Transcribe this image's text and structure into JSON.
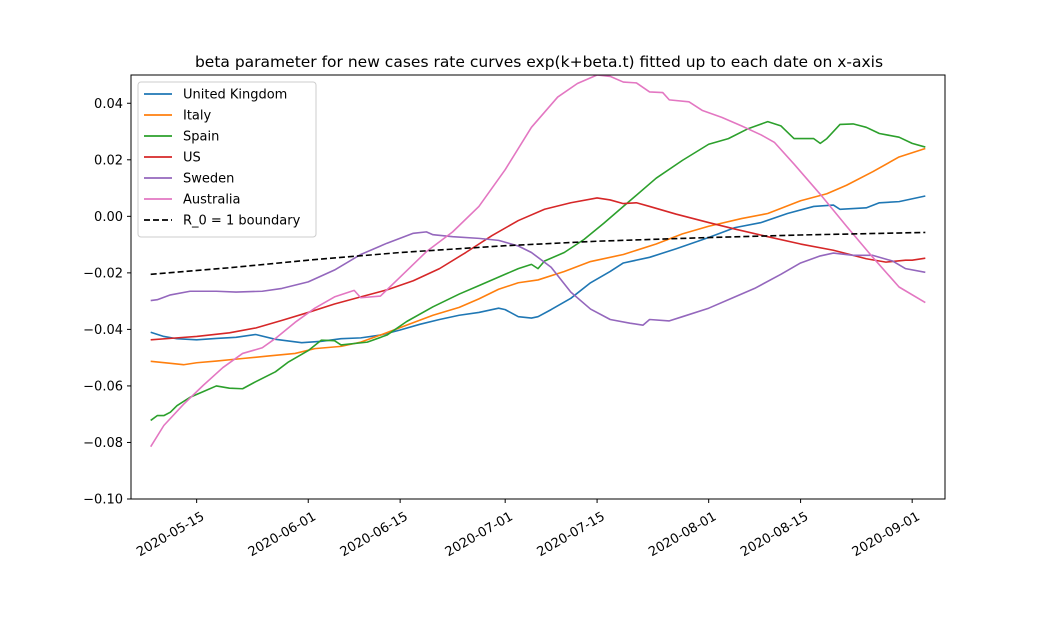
{
  "chart_data": {
    "type": "line",
    "title": "beta parameter for new cases rate curves exp(k+beta.t) fitted up to each date on x-axis",
    "xlabel": "",
    "ylabel": "",
    "x_start": "2020-05-08",
    "x_end": "2020-09-03",
    "xlim": [
      "2020-05-05",
      "2020-09-06"
    ],
    "ylim": [
      -0.1,
      0.05
    ],
    "x_ticks": [
      "2020-05-15",
      "2020-06-01",
      "2020-06-15",
      "2020-07-01",
      "2020-07-15",
      "2020-08-01",
      "2020-08-15",
      "2020-09-01"
    ],
    "y_ticks": [
      -0.1,
      -0.08,
      -0.06,
      -0.04,
      -0.02,
      0.0,
      0.02,
      0.04
    ],
    "y_tick_labels": [
      "−0.10",
      "−0.08",
      "−0.06",
      "−0.04",
      "−0.02",
      "0.00",
      "0.02",
      "0.04"
    ],
    "legend_position": "upper-left",
    "grid": false,
    "series": [
      {
        "name": "United Kingdom",
        "color": "#1f77b4",
        "dash": false,
        "points": [
          [
            "2020-05-08",
            -0.041
          ],
          [
            "2020-05-10",
            -0.0425
          ],
          [
            "2020-05-12",
            -0.0433
          ],
          [
            "2020-05-15",
            -0.0437
          ],
          [
            "2020-05-18",
            -0.0432
          ],
          [
            "2020-05-21",
            -0.0428
          ],
          [
            "2020-05-24",
            -0.0418
          ],
          [
            "2020-05-27",
            -0.0435
          ],
          [
            "2020-05-31",
            -0.0447
          ],
          [
            "2020-06-03",
            -0.0442
          ],
          [
            "2020-06-06",
            -0.0433
          ],
          [
            "2020-06-09",
            -0.043
          ],
          [
            "2020-06-12",
            -0.042
          ],
          [
            "2020-06-15",
            -0.0402
          ],
          [
            "2020-06-18",
            -0.0382
          ],
          [
            "2020-06-21",
            -0.0365
          ],
          [
            "2020-06-24",
            -0.035
          ],
          [
            "2020-06-27",
            -0.034
          ],
          [
            "2020-06-30",
            -0.0325
          ],
          [
            "2020-07-01",
            -0.033
          ],
          [
            "2020-07-03",
            -0.0355
          ],
          [
            "2020-07-05",
            -0.036
          ],
          [
            "2020-07-06",
            -0.0355
          ],
          [
            "2020-07-08",
            -0.033
          ],
          [
            "2020-07-11",
            -0.029
          ],
          [
            "2020-07-14",
            -0.0235
          ],
          [
            "2020-07-17",
            -0.0195
          ],
          [
            "2020-07-19",
            -0.0165
          ],
          [
            "2020-07-23",
            -0.0145
          ],
          [
            "2020-07-27",
            -0.0115
          ],
          [
            "2020-08-01",
            -0.0075
          ],
          [
            "2020-08-05",
            -0.004
          ],
          [
            "2020-08-09",
            -0.0022
          ],
          [
            "2020-08-13",
            0.001
          ],
          [
            "2020-08-17",
            0.0035
          ],
          [
            "2020-08-20",
            0.004
          ],
          [
            "2020-08-21",
            0.0025
          ],
          [
            "2020-08-25",
            0.003
          ],
          [
            "2020-08-27",
            0.0048
          ],
          [
            "2020-08-30",
            0.0052
          ],
          [
            "2020-09-03",
            0.0072
          ]
        ]
      },
      {
        "name": "Italy",
        "color": "#ff7f0e",
        "dash": false,
        "points": [
          [
            "2020-05-08",
            -0.0513
          ],
          [
            "2020-05-11",
            -0.052
          ],
          [
            "2020-05-13",
            -0.0525
          ],
          [
            "2020-05-15",
            -0.0518
          ],
          [
            "2020-05-18",
            -0.0512
          ],
          [
            "2020-05-22",
            -0.0503
          ],
          [
            "2020-05-26",
            -0.0494
          ],
          [
            "2020-05-30",
            -0.0485
          ],
          [
            "2020-06-02",
            -0.0468
          ],
          [
            "2020-06-06",
            -0.046
          ],
          [
            "2020-06-09",
            -0.0445
          ],
          [
            "2020-06-12",
            -0.042
          ],
          [
            "2020-06-16",
            -0.0385
          ],
          [
            "2020-06-20",
            -0.035
          ],
          [
            "2020-06-24",
            -0.0322
          ],
          [
            "2020-06-27",
            -0.0292
          ],
          [
            "2020-06-30",
            -0.0258
          ],
          [
            "2020-07-03",
            -0.0235
          ],
          [
            "2020-07-06",
            -0.0225
          ],
          [
            "2020-07-10",
            -0.0195
          ],
          [
            "2020-07-14",
            -0.016
          ],
          [
            "2020-07-19",
            -0.0135
          ],
          [
            "2020-07-24",
            -0.0098
          ],
          [
            "2020-07-28",
            -0.0062
          ],
          [
            "2020-08-01",
            -0.0035
          ],
          [
            "2020-08-06",
            -0.0008
          ],
          [
            "2020-08-10",
            0.001
          ],
          [
            "2020-08-15",
            0.0055
          ],
          [
            "2020-08-19",
            0.008
          ],
          [
            "2020-08-22",
            0.011
          ],
          [
            "2020-08-26",
            0.0158
          ],
          [
            "2020-08-30",
            0.021
          ],
          [
            "2020-09-03",
            0.024
          ]
        ]
      },
      {
        "name": "Spain",
        "color": "#2ca02c",
        "dash": false,
        "points": [
          [
            "2020-05-08",
            -0.0722
          ],
          [
            "2020-05-09",
            -0.0705
          ],
          [
            "2020-05-10",
            -0.0705
          ],
          [
            "2020-05-11",
            -0.0693
          ],
          [
            "2020-05-12",
            -0.067
          ],
          [
            "2020-05-14",
            -0.064
          ],
          [
            "2020-05-16",
            -0.062
          ],
          [
            "2020-05-18",
            -0.06
          ],
          [
            "2020-05-20",
            -0.0608
          ],
          [
            "2020-05-22",
            -0.061
          ],
          [
            "2020-05-24",
            -0.0585
          ],
          [
            "2020-05-27",
            -0.055
          ],
          [
            "2020-05-29",
            -0.0515
          ],
          [
            "2020-06-01",
            -0.0475
          ],
          [
            "2020-06-03",
            -0.0438
          ],
          [
            "2020-06-05",
            -0.044
          ],
          [
            "2020-06-06",
            -0.0455
          ],
          [
            "2020-06-10",
            -0.0445
          ],
          [
            "2020-06-13",
            -0.042
          ],
          [
            "2020-06-16",
            -0.0372
          ],
          [
            "2020-06-20",
            -0.032
          ],
          [
            "2020-06-24",
            -0.0275
          ],
          [
            "2020-06-27",
            -0.0245
          ],
          [
            "2020-07-01",
            -0.0205
          ],
          [
            "2020-07-03",
            -0.0185
          ],
          [
            "2020-07-05",
            -0.017
          ],
          [
            "2020-07-06",
            -0.0185
          ],
          [
            "2020-07-07",
            -0.0158
          ],
          [
            "2020-07-10",
            -0.0128
          ],
          [
            "2020-07-13",
            -0.0082
          ],
          [
            "2020-07-16",
            -0.0025
          ],
          [
            "2020-07-20",
            0.0055
          ],
          [
            "2020-07-24",
            0.0135
          ],
          [
            "2020-07-28",
            0.0198
          ],
          [
            "2020-08-01",
            0.0255
          ],
          [
            "2020-08-04",
            0.0275
          ],
          [
            "2020-08-07",
            0.031
          ],
          [
            "2020-08-10",
            0.0335
          ],
          [
            "2020-08-12",
            0.032
          ],
          [
            "2020-08-14",
            0.0275
          ],
          [
            "2020-08-17",
            0.0275
          ],
          [
            "2020-08-18",
            0.0258
          ],
          [
            "2020-08-19",
            0.0275
          ],
          [
            "2020-08-21",
            0.0325
          ],
          [
            "2020-08-23",
            0.0327
          ],
          [
            "2020-08-25",
            0.0315
          ],
          [
            "2020-08-27",
            0.0293
          ],
          [
            "2020-08-30",
            0.028
          ],
          [
            "2020-09-01",
            0.0258
          ],
          [
            "2020-09-03",
            0.0245
          ]
        ]
      },
      {
        "name": "US",
        "color": "#d62728",
        "dash": false,
        "points": [
          [
            "2020-05-08",
            -0.0437
          ],
          [
            "2020-05-12",
            -0.043
          ],
          [
            "2020-05-15",
            -0.0425
          ],
          [
            "2020-05-20",
            -0.0412
          ],
          [
            "2020-05-24",
            -0.0395
          ],
          [
            "2020-05-28",
            -0.0368
          ],
          [
            "2020-06-01",
            -0.034
          ],
          [
            "2020-06-05",
            -0.031
          ],
          [
            "2020-06-09",
            -0.0285
          ],
          [
            "2020-06-13",
            -0.026
          ],
          [
            "2020-06-17",
            -0.0228
          ],
          [
            "2020-06-21",
            -0.0185
          ],
          [
            "2020-06-25",
            -0.0128
          ],
          [
            "2020-06-29",
            -0.0068
          ],
          [
            "2020-07-03",
            -0.0015
          ],
          [
            "2020-07-07",
            0.0025
          ],
          [
            "2020-07-11",
            0.0048
          ],
          [
            "2020-07-15",
            0.0065
          ],
          [
            "2020-07-17",
            0.0058
          ],
          [
            "2020-07-19",
            0.0045
          ],
          [
            "2020-07-21",
            0.0048
          ],
          [
            "2020-07-23",
            0.0035
          ],
          [
            "2020-07-27",
            0.0008
          ],
          [
            "2020-08-01",
            -0.0022
          ],
          [
            "2020-08-05",
            -0.0045
          ],
          [
            "2020-08-10",
            -0.0072
          ],
          [
            "2020-08-15",
            -0.0098
          ],
          [
            "2020-08-20",
            -0.012
          ],
          [
            "2020-08-25",
            -0.015
          ],
          [
            "2020-08-28",
            -0.0162
          ],
          [
            "2020-08-31",
            -0.0155
          ],
          [
            "2020-09-01",
            -0.0155
          ],
          [
            "2020-09-03",
            -0.0148
          ]
        ]
      },
      {
        "name": "Sweden",
        "color": "#9467bd",
        "dash": false,
        "points": [
          [
            "2020-05-08",
            -0.0298
          ],
          [
            "2020-05-09",
            -0.0295
          ],
          [
            "2020-05-11",
            -0.0278
          ],
          [
            "2020-05-14",
            -0.0265
          ],
          [
            "2020-05-18",
            -0.0265
          ],
          [
            "2020-05-21",
            -0.0268
          ],
          [
            "2020-05-25",
            -0.0265
          ],
          [
            "2020-05-28",
            -0.0255
          ],
          [
            "2020-06-01",
            -0.0232
          ],
          [
            "2020-06-05",
            -0.019
          ],
          [
            "2020-06-09",
            -0.0135
          ],
          [
            "2020-06-13",
            -0.0095
          ],
          [
            "2020-06-17",
            -0.006
          ],
          [
            "2020-06-19",
            -0.0055
          ],
          [
            "2020-06-20",
            -0.0065
          ],
          [
            "2020-06-23",
            -0.0072
          ],
          [
            "2020-06-27",
            -0.0078
          ],
          [
            "2020-06-30",
            -0.0085
          ],
          [
            "2020-07-03",
            -0.0105
          ],
          [
            "2020-07-05",
            -0.0128
          ],
          [
            "2020-07-08",
            -0.018
          ],
          [
            "2020-07-11",
            -0.0268
          ],
          [
            "2020-07-14",
            -0.0328
          ],
          [
            "2020-07-17",
            -0.0365
          ],
          [
            "2020-07-20",
            -0.0378
          ],
          [
            "2020-07-22",
            -0.0385
          ],
          [
            "2020-07-23",
            -0.0365
          ],
          [
            "2020-07-26",
            -0.037
          ],
          [
            "2020-07-28",
            -0.0355
          ],
          [
            "2020-08-01",
            -0.0325
          ],
          [
            "2020-08-05",
            -0.0285
          ],
          [
            "2020-08-08",
            -0.0255
          ],
          [
            "2020-08-12",
            -0.0205
          ],
          [
            "2020-08-15",
            -0.0165
          ],
          [
            "2020-08-18",
            -0.014
          ],
          [
            "2020-08-20",
            -0.013
          ],
          [
            "2020-08-23",
            -0.0138
          ],
          [
            "2020-08-26",
            -0.0138
          ],
          [
            "2020-08-29",
            -0.0158
          ],
          [
            "2020-08-31",
            -0.0185
          ],
          [
            "2020-09-03",
            -0.0198
          ]
        ]
      },
      {
        "name": "Australia",
        "color": "#e377c2",
        "dash": false,
        "points": [
          [
            "2020-05-08",
            -0.0815
          ],
          [
            "2020-05-10",
            -0.074
          ],
          [
            "2020-05-13",
            -0.0665
          ],
          [
            "2020-05-16",
            -0.0598
          ],
          [
            "2020-05-19",
            -0.0535
          ],
          [
            "2020-05-22",
            -0.0485
          ],
          [
            "2020-05-25",
            -0.0465
          ],
          [
            "2020-05-27",
            -0.0432
          ],
          [
            "2020-05-30",
            -0.0375
          ],
          [
            "2020-06-02",
            -0.0325
          ],
          [
            "2020-06-05",
            -0.0285
          ],
          [
            "2020-06-08",
            -0.0262
          ],
          [
            "2020-06-09",
            -0.0288
          ],
          [
            "2020-06-12",
            -0.0282
          ],
          [
            "2020-06-15",
            -0.0215
          ],
          [
            "2020-06-19",
            -0.0125
          ],
          [
            "2020-06-23",
            -0.0055
          ],
          [
            "2020-06-27",
            0.0035
          ],
          [
            "2020-07-01",
            0.0165
          ],
          [
            "2020-07-05",
            0.0315
          ],
          [
            "2020-07-09",
            0.0422
          ],
          [
            "2020-07-12",
            0.047
          ],
          [
            "2020-07-15",
            0.05
          ],
          [
            "2020-07-17",
            0.0495
          ],
          [
            "2020-07-19",
            0.0475
          ],
          [
            "2020-07-21",
            0.0472
          ],
          [
            "2020-07-23",
            0.044
          ],
          [
            "2020-07-25",
            0.0438
          ],
          [
            "2020-07-26",
            0.0412
          ],
          [
            "2020-07-29",
            0.0405
          ],
          [
            "2020-07-31",
            0.0375
          ],
          [
            "2020-08-03",
            0.035
          ],
          [
            "2020-08-06",
            0.032
          ],
          [
            "2020-08-09",
            0.0288
          ],
          [
            "2020-08-11",
            0.0262
          ],
          [
            "2020-08-14",
            0.0185
          ],
          [
            "2020-08-18",
            0.0078
          ],
          [
            "2020-08-22",
            -0.0035
          ],
          [
            "2020-08-26",
            -0.0145
          ],
          [
            "2020-08-30",
            -0.025
          ],
          [
            "2020-09-03",
            -0.0305
          ]
        ]
      },
      {
        "name": "R_0 = 1 boundary",
        "color": "#000000",
        "dash": true,
        "points": [
          [
            "2020-05-08",
            -0.0205
          ],
          [
            "2020-05-20",
            -0.0182
          ],
          [
            "2020-06-01",
            -0.0155
          ],
          [
            "2020-06-15",
            -0.0128
          ],
          [
            "2020-07-01",
            -0.0104
          ],
          [
            "2020-07-15",
            -0.0088
          ],
          [
            "2020-08-01",
            -0.0075
          ],
          [
            "2020-08-15",
            -0.0066
          ],
          [
            "2020-09-03",
            -0.0057
          ]
        ]
      }
    ]
  }
}
